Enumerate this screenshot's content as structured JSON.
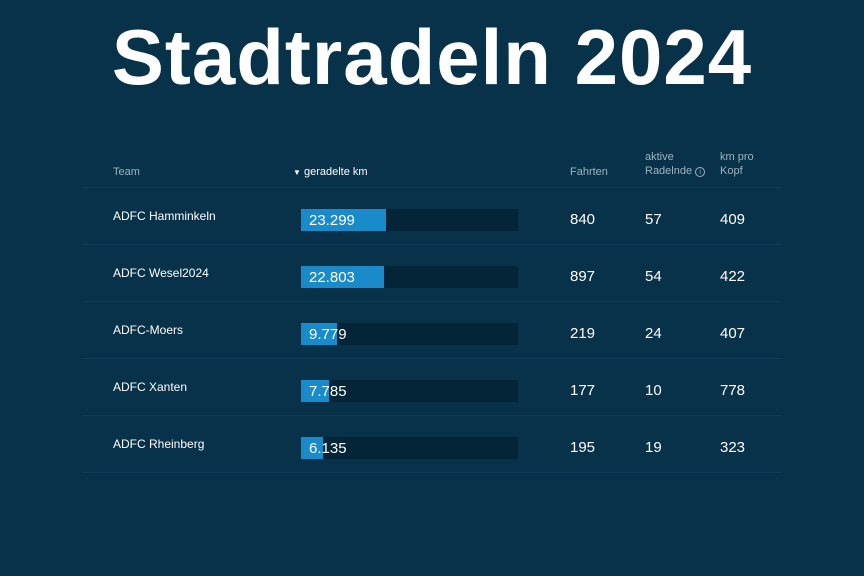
{
  "title": "Stadtradeln 2024",
  "headers": {
    "team": "Team",
    "km": "geradelte km",
    "fahrten": "Fahrten",
    "aktive_1": "aktive",
    "aktive_2": "Radelnde",
    "kopf_1": "km pro",
    "kopf_2": "Kopf"
  },
  "bar_scale_max": 59500,
  "colors": {
    "background": "#07324a",
    "bar": "#1a8bca",
    "track": "#042537"
  },
  "rows": [
    {
      "team": "ADFC Hamminkeln",
      "km": "23.299",
      "km_value": 23299,
      "fahrten": "840",
      "aktive": "57",
      "kopf": "409"
    },
    {
      "team": "ADFC Wesel2024",
      "km": "22.803",
      "km_value": 22803,
      "fahrten": "897",
      "aktive": "54",
      "kopf": "422"
    },
    {
      "team": "ADFC-Moers",
      "km": "9.779",
      "km_value": 9779,
      "fahrten": "219",
      "aktive": "24",
      "kopf": "407"
    },
    {
      "team": "ADFC Xanten",
      "km": "7.785",
      "km_value": 7785,
      "fahrten": "177",
      "aktive": "10",
      "kopf": "778"
    },
    {
      "team": "ADFC Rheinberg",
      "km": "6.135",
      "km_value": 6135,
      "fahrten": "195",
      "aktive": "19",
      "kopf": "323"
    }
  ]
}
